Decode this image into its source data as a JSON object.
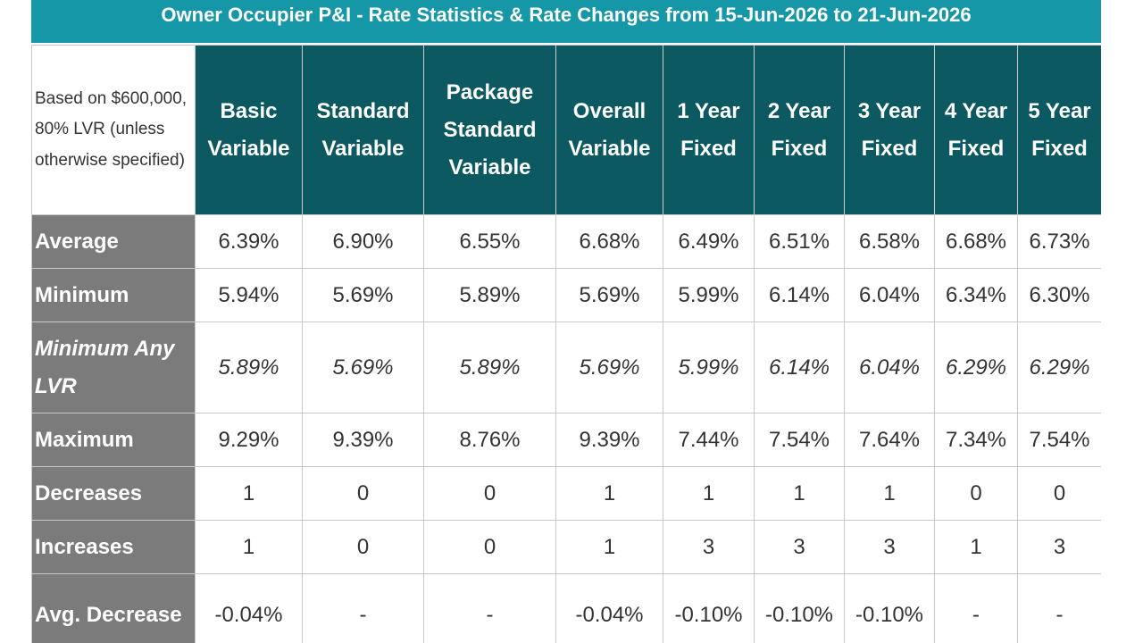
{
  "title": "Owner Occupier P&I - Rate Statistics & Rate Changes from 15-Jun-2026 to 21-Jun-2026",
  "corner_note": "Based on $600,000, 80% LVR (unless otherwise specified)",
  "columns": [
    "Basic Variable",
    "Standard Variable",
    "Package Standard Variable",
    "Overall Variable",
    "1 Year Fixed",
    "2 Year Fixed",
    "3 Year Fixed",
    "4 Year Fixed",
    "5 Year Fixed"
  ],
  "rows": [
    {
      "label": "Average",
      "italic": false,
      "values": [
        "6.39%",
        "6.90%",
        "6.55%",
        "6.68%",
        "6.49%",
        "6.51%",
        "6.58%",
        "6.68%",
        "6.73%"
      ]
    },
    {
      "label": "Minimum",
      "italic": false,
      "values": [
        "5.94%",
        "5.69%",
        "5.89%",
        "5.69%",
        "5.99%",
        "6.14%",
        "6.04%",
        "6.34%",
        "6.30%"
      ]
    },
    {
      "label": "Minimum Any LVR",
      "italic": true,
      "values": [
        "5.89%",
        "5.69%",
        "5.89%",
        "5.69%",
        "5.99%",
        "6.14%",
        "6.04%",
        "6.29%",
        "6.29%"
      ]
    },
    {
      "label": "Maximum",
      "italic": false,
      "values": [
        "9.29%",
        "9.39%",
        "8.76%",
        "9.39%",
        "7.44%",
        "7.54%",
        "7.64%",
        "7.34%",
        "7.54%"
      ]
    },
    {
      "label": "Decreases",
      "italic": false,
      "values": [
        "1",
        "0",
        "0",
        "1",
        "1",
        "1",
        "1",
        "0",
        "0"
      ]
    },
    {
      "label": "Increases",
      "italic": false,
      "values": [
        "1",
        "0",
        "0",
        "1",
        "3",
        "3",
        "3",
        "1",
        "3"
      ]
    },
    {
      "label": "Avg. Decrease",
      "italic": false,
      "values": [
        "-0.04%",
        "-",
        "-",
        "-0.04%",
        "-0.10%",
        "-0.10%",
        "-0.10%",
        "-",
        "-"
      ]
    }
  ]
}
